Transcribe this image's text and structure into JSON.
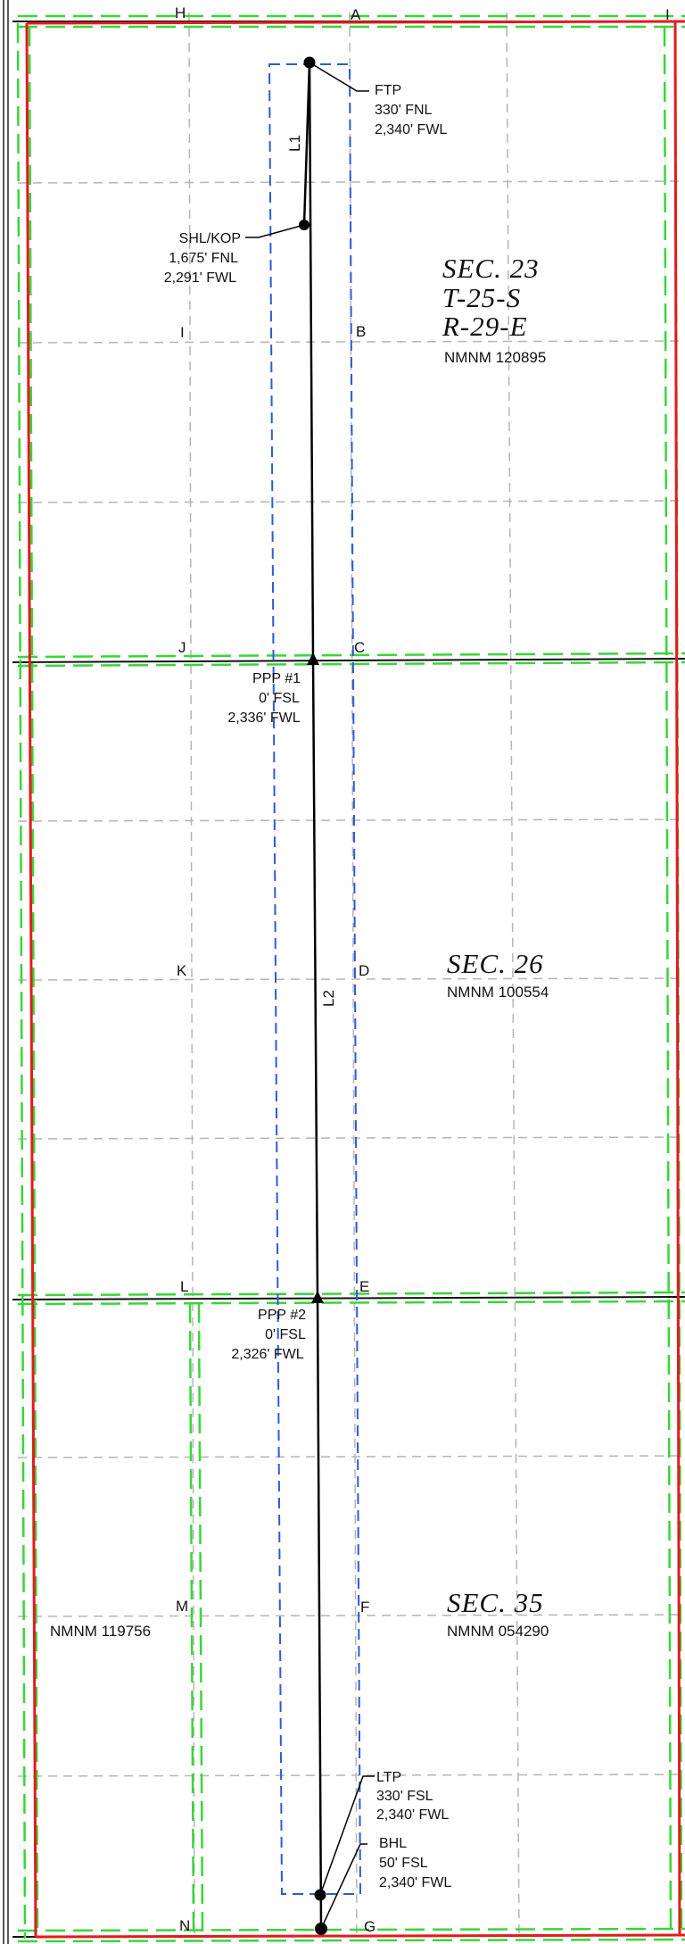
{
  "grid_labels": {
    "H": "H",
    "A": "A",
    "I_top": "I",
    "I": "I",
    "B": "B",
    "J": "J",
    "C": "C",
    "K": "K",
    "D": "D",
    "L": "L",
    "E": "E",
    "M": "M",
    "F": "F",
    "N": "N",
    "G": "G"
  },
  "leg_labels": {
    "L1": "L1",
    "L2": "L2"
  },
  "points": {
    "ftp": [
      "FTP",
      "330' FNL",
      "2,340' FWL"
    ],
    "shl": [
      "SHL/KOP",
      "1,675' FNL",
      "2,291' FWL"
    ],
    "ppp1": [
      "PPP #1",
      "0' FSL",
      "2,336' FWL"
    ],
    "ppp2": [
      "PPP #2",
      "0' FSL",
      "2,326' FWL"
    ],
    "ltp": [
      "LTP",
      "330' FSL",
      "2,340' FWL"
    ],
    "bhl": [
      "BHL",
      "50' FSL",
      "2,340' FWL"
    ]
  },
  "sections": {
    "sec23": {
      "name": "SEC. 23",
      "township": "T-25-S",
      "range": "R-29-E",
      "lease": "NMNM 120895"
    },
    "sec26": {
      "name": "SEC. 26",
      "lease": "NMNM 100554"
    },
    "sec35": {
      "name": "SEC. 35",
      "lease": "NMNM 054290"
    }
  },
  "lease_west35": "NMNM 119756",
  "colors": {
    "section_line": "#e41a1c",
    "lease_line": "#39d639",
    "buffer_line": "#2b5bd6",
    "quarter_line": "#b5b5b5",
    "well_path": "#000000"
  }
}
